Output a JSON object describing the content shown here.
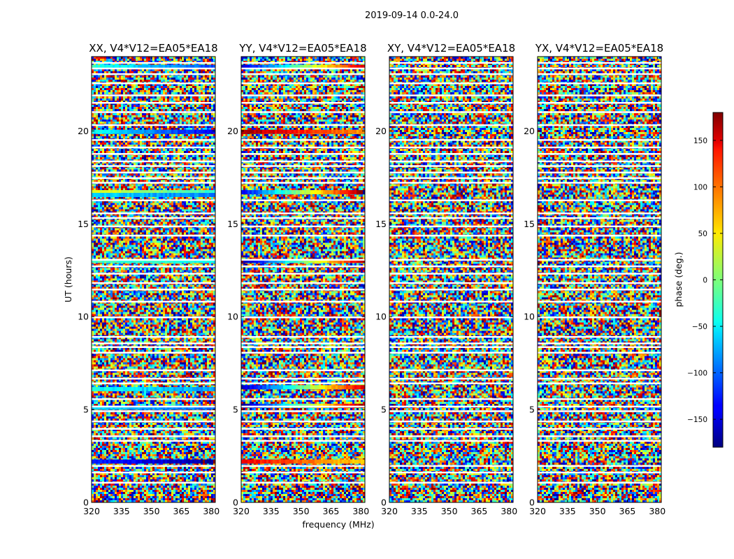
{
  "chart_data": {
    "type": "heatmap",
    "suptitle": "2019-09-14 0.0-24.0",
    "xlabel": "frequency (MHz)",
    "ylabel": "UT (hours)",
    "xlim": [
      320,
      382
    ],
    "ylim": [
      0,
      24
    ],
    "xticks": [
      320,
      335,
      350,
      365,
      380
    ],
    "yticks": [
      0,
      5,
      10,
      15,
      20
    ],
    "colorbar": {
      "label": "phase (deg.)",
      "range": [
        -180,
        180
      ],
      "ticks": [
        -150,
        -100,
        -50,
        0,
        50,
        100,
        150
      ],
      "tick_labels": [
        "−150",
        "−100",
        "−50",
        "0",
        "50",
        "100",
        "150"
      ],
      "colormap": "jet"
    },
    "panels": [
      {
        "title": "XX, V4*V12=EA05*EA18"
      },
      {
        "title": "YY, V4*V12=EA05*EA18"
      },
      {
        "title": "XY, V4*V12=EA05*EA18"
      },
      {
        "title": "YX, V4*V12=EA05*EA18"
      }
    ],
    "flagged_ut_hours": [
      1.05,
      1.6,
      1.95,
      3.3,
      3.55,
      3.95,
      4.35,
      4.9,
      5.15,
      5.55,
      6.4,
      6.65,
      7.1,
      8.05,
      8.35,
      8.55,
      8.9,
      9.95,
      10.8,
      11.45,
      11.8,
      12.3,
      12.7,
      13.05,
      14.35,
      14.85,
      15.3,
      15.55,
      16.25,
      17.2,
      17.45,
      17.75,
      18.1,
      18.35,
      18.75,
      19.1,
      19.5,
      20.3,
      21.0,
      21.5,
      21.9,
      22.55,
      23.05,
      23.35,
      23.65
    ],
    "coherent_bands": [
      {
        "panel": 0,
        "ut": 2.2,
        "phase_start": -120,
        "phase_end": -175
      },
      {
        "panel": 0,
        "ut": 6.1,
        "phase_start": -40,
        "phase_end": -80
      },
      {
        "panel": 0,
        "ut": 5.1,
        "phase_start": -60,
        "phase_end": -100
      },
      {
        "panel": 0,
        "ut": 16.7,
        "phase_start": 40,
        "phase_end": -30
      },
      {
        "panel": 0,
        "ut": 16.55,
        "phase_start": -60,
        "phase_end": -90
      },
      {
        "panel": 0,
        "ut": 19.95,
        "phase_start": -40,
        "phase_end": -140
      },
      {
        "panel": 0,
        "ut": 23.45,
        "phase_start": -30,
        "phase_end": -110
      },
      {
        "panel": 0,
        "ut": 13.0,
        "phase_start": -20,
        "phase_end": -40
      },
      {
        "panel": 1,
        "ut": 2.2,
        "phase_start": 140,
        "phase_end": 60
      },
      {
        "panel": 1,
        "ut": 5.2,
        "phase_start": -175,
        "phase_end": 170
      },
      {
        "panel": 1,
        "ut": 6.2,
        "phase_start": -160,
        "phase_end": 150
      },
      {
        "panel": 1,
        "ut": 16.7,
        "phase_start": -140,
        "phase_end": 175
      },
      {
        "panel": 1,
        "ut": 19.95,
        "phase_start": 170,
        "phase_end": 80
      },
      {
        "panel": 1,
        "ut": 23.45,
        "phase_start": -150,
        "phase_end": 150
      },
      {
        "panel": 1,
        "ut": 13.0,
        "phase_start": -170,
        "phase_end": 160
      }
    ]
  }
}
